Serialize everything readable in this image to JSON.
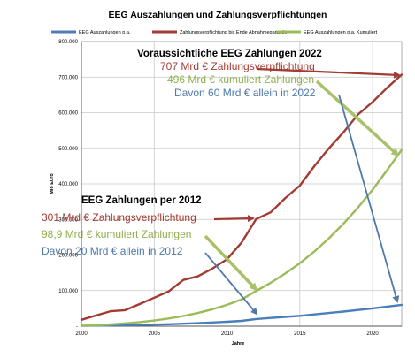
{
  "chart_data": {
    "type": "line",
    "title": "EEG Auszahlungen und Zahlungsverpflichtungen",
    "xlabel": "Jahre",
    "ylabel": "Mio Euro",
    "xlim": [
      2000,
      2022
    ],
    "ylim": [
      0,
      800000
    ],
    "x_ticks": [
      "2000",
      "2005",
      "2010",
      "2015",
      "2020"
    ],
    "y_ticks": [
      "-",
      "100.000",
      "200.000",
      "300.000",
      "400.000",
      "500.000",
      "600.000",
      "700.000",
      "800.000"
    ],
    "grid": true,
    "legend_position": "top",
    "x": [
      2000,
      2001,
      2002,
      2003,
      2004,
      2005,
      2006,
      2007,
      2008,
      2009,
      2010,
      2011,
      2012,
      2013,
      2014,
      2015,
      2016,
      2017,
      2018,
      2019,
      2020,
      2021,
      2022
    ],
    "series": [
      {
        "name": "EEG Auszahlungen p.a.",
        "color": "#4a7ebb",
        "values": [
          1000,
          1500,
          2500,
          3000,
          3500,
          4500,
          5500,
          7000,
          8500,
          10500,
          12500,
          15000,
          20000,
          23000,
          26000,
          29000,
          33000,
          37000,
          41000,
          45500,
          50000,
          55000,
          60000
        ]
      },
      {
        "name": "Zahlungsverpflichtung bis Ende Abnahmegarantie",
        "color": "#a23b32",
        "values": [
          18000,
          30000,
          42000,
          45000,
          62000,
          80000,
          98000,
          130000,
          140000,
          162000,
          188000,
          235000,
          301000,
          320000,
          360000,
          395000,
          450000,
          500000,
          545000,
          595000,
          630000,
          670000,
          707000
        ]
      },
      {
        "name": "EEG Auszahlungen p.a. Kumuliert",
        "color": "#9bbb59",
        "values": [
          1000,
          2500,
          5000,
          8000,
          11500,
          16000,
          21500,
          28500,
          37000,
          47500,
          60000,
          75000,
          98900,
          122000,
          148000,
          177000,
          210000,
          247000,
          288000,
          333500,
          383500,
          438500,
          496000
        ]
      }
    ],
    "annotations": {
      "heading_2022": "Voraussichtliche EEG Zahlungen 2022",
      "line1_2022": "707 Mrd € Zahlungsverpflichtung",
      "line2_2022": "496 Mrd € kumuliert Zahlungen",
      "line3_2022": "Davon 60 Mrd € allein in 2022",
      "heading_2012": "EEG Zahlungen per 2012",
      "line1_2012": "301 Mrd € Zahlungsverpflichtung",
      "line2_2012": "98,9 Mrd € kumuliert Zahlungen",
      "line3_2012": "Davon 20 Mrd € allein in 2012"
    }
  }
}
